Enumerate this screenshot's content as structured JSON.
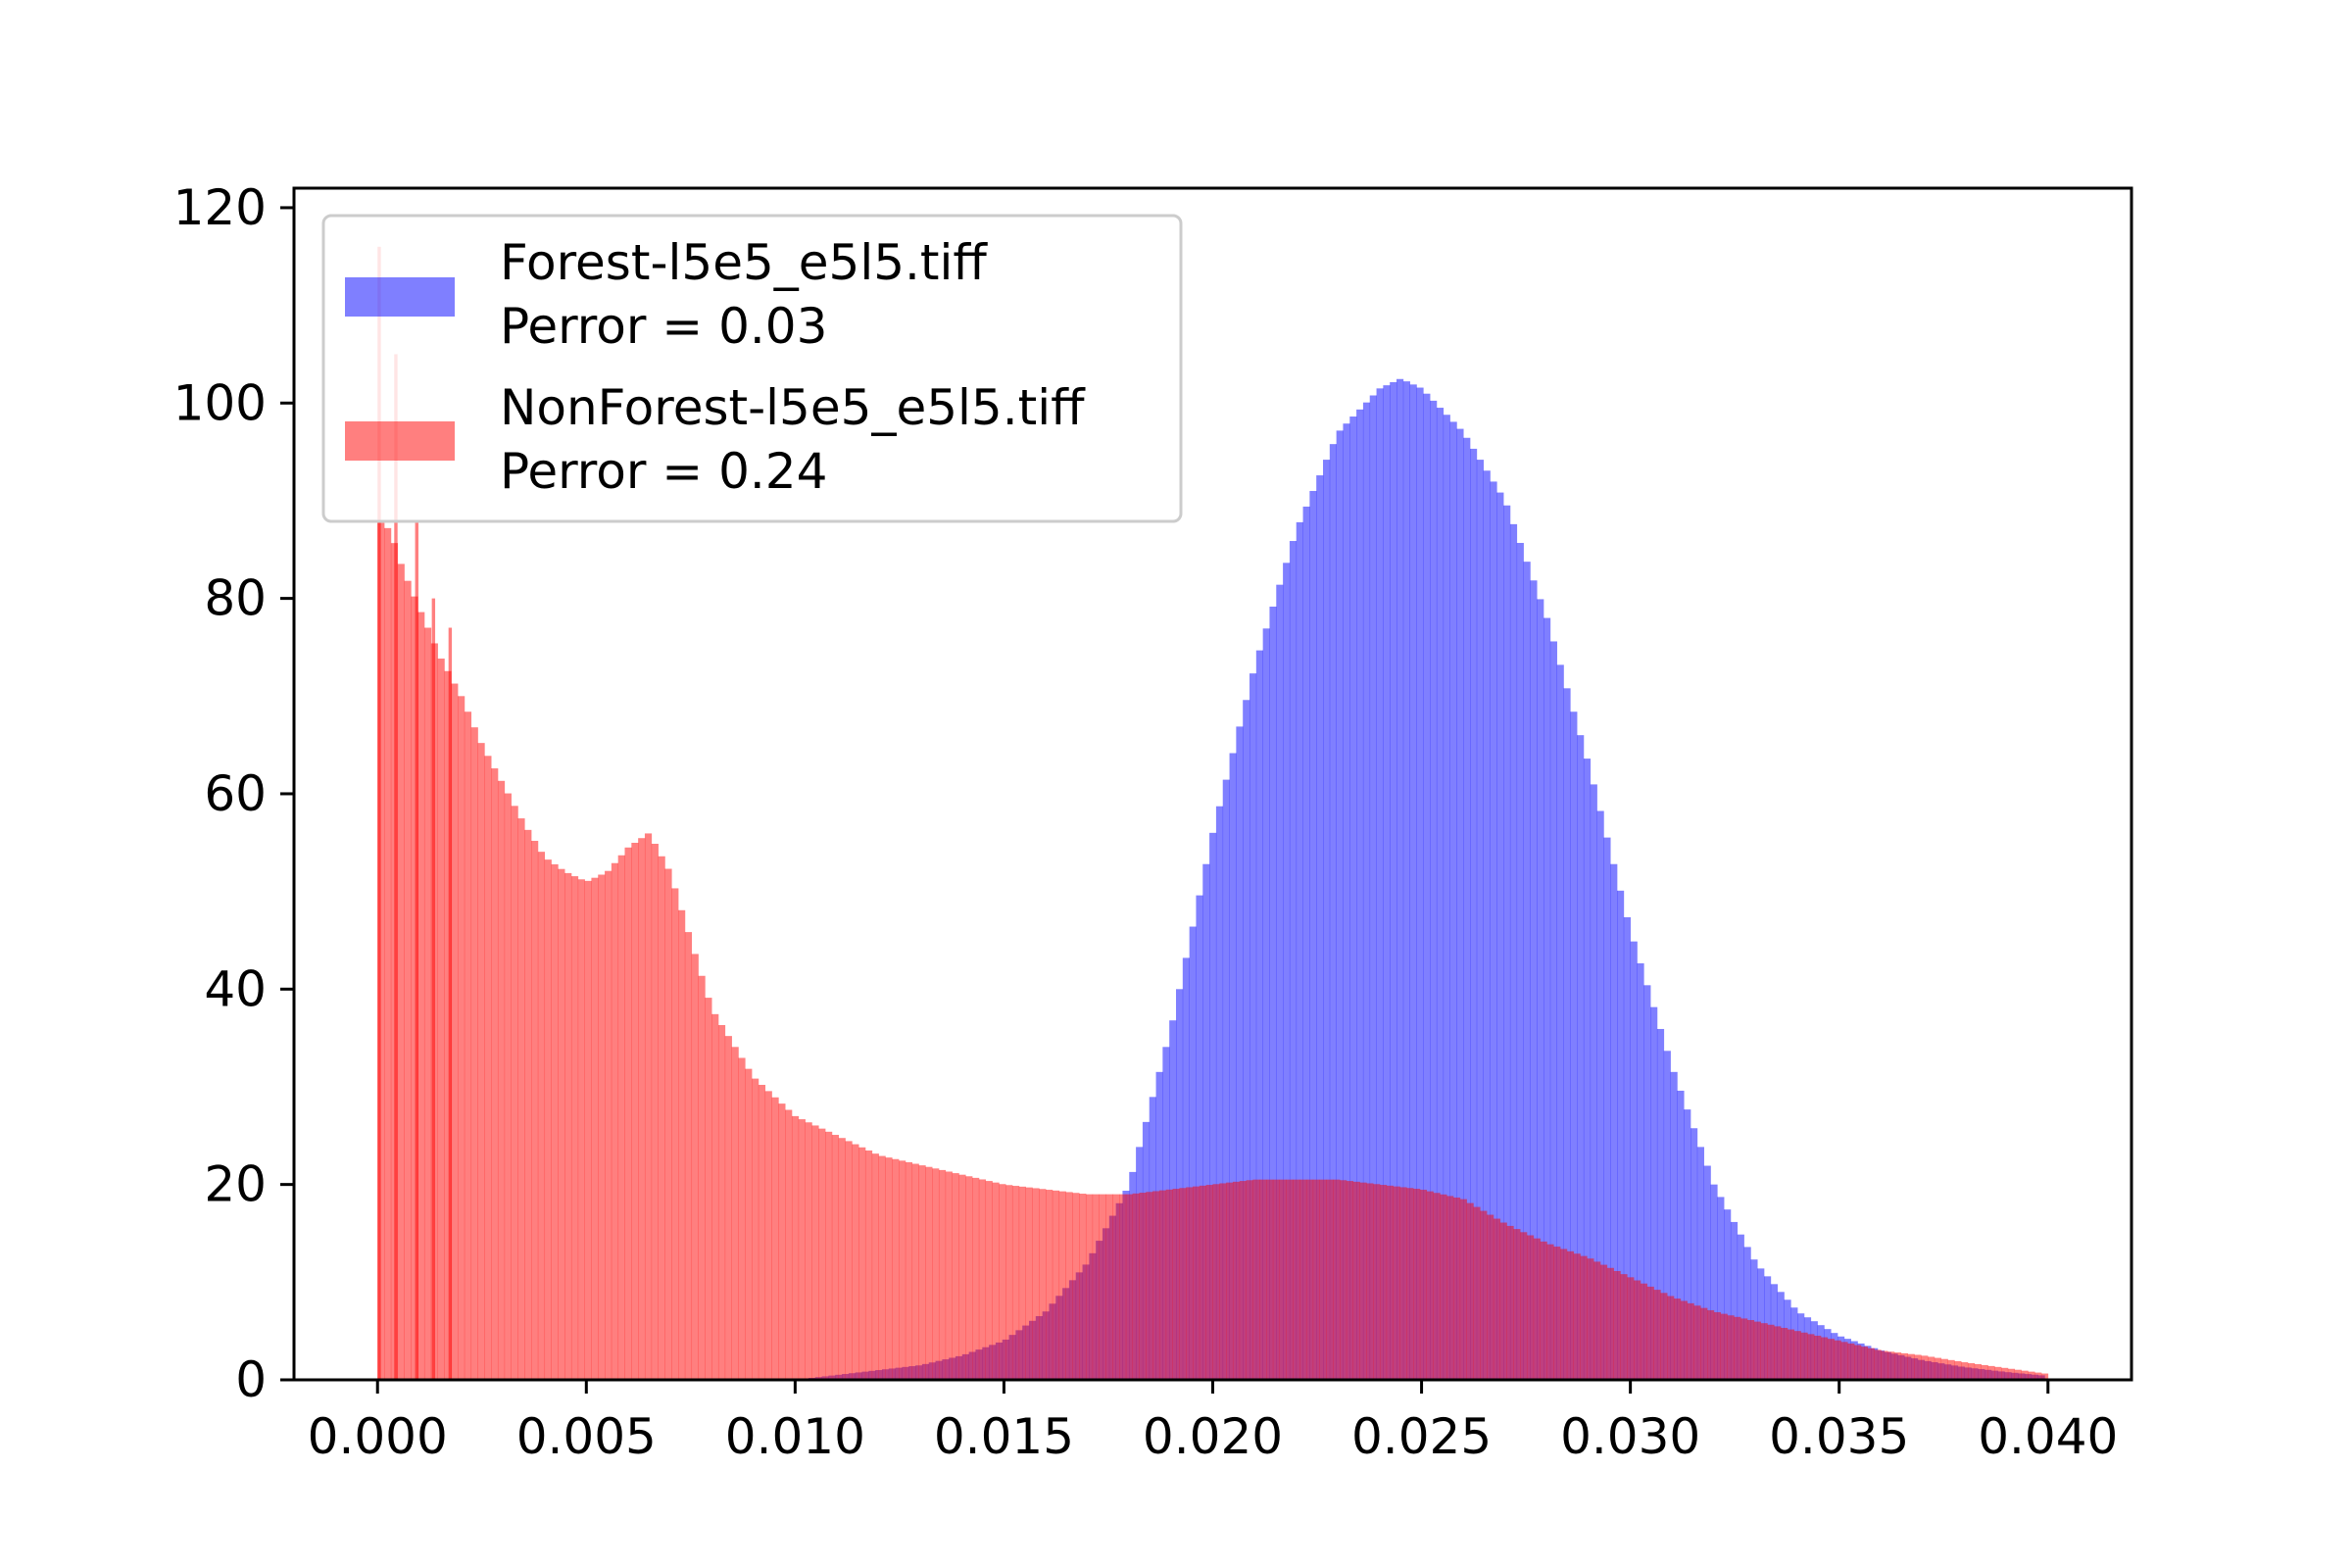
{
  "chart_data": {
    "type": "histogram",
    "title": "",
    "xlabel": "",
    "ylabel": "",
    "xlim": [
      -0.002,
      0.042
    ],
    "ylim": [
      0,
      122
    ],
    "xticks": [
      0.0,
      0.005,
      0.01,
      0.015,
      0.02,
      0.025,
      0.03,
      0.035,
      0.04
    ],
    "xtick_labels": [
      "0.000",
      "0.005",
      "0.010",
      "0.015",
      "0.020",
      "0.025",
      "0.030",
      "0.035",
      "0.040"
    ],
    "yticks": [
      0,
      20,
      40,
      60,
      80,
      100,
      120
    ],
    "ytick_labels": [
      "0",
      "20",
      "40",
      "60",
      "80",
      "100",
      "120"
    ],
    "grid": false,
    "legend_position": "top-left",
    "bin_width": 0.00016,
    "series": [
      {
        "name": "Forest-l5e5_e5l5.tiff",
        "perror_label": "Perror = 0.03",
        "color": "#0000ff",
        "alpha": 0.5,
        "x": [
          0.01,
          0.011,
          0.012,
          0.013,
          0.014,
          0.015,
          0.016,
          0.017,
          0.018,
          0.019,
          0.02,
          0.021,
          0.022,
          0.023,
          0.024,
          0.0245,
          0.025,
          0.026,
          0.027,
          0.028,
          0.029,
          0.03,
          0.031,
          0.032,
          0.033,
          0.034,
          0.035,
          0.036,
          0.037,
          0.038,
          0.039,
          0.04
        ],
        "y": [
          0,
          0.5,
          1,
          1.5,
          2.5,
          4,
          7,
          12,
          20,
          36,
          56,
          73,
          87,
          97,
          101.5,
          102.5,
          101.5,
          97,
          90,
          78,
          63,
          46,
          32,
          20,
          12,
          7,
          4.5,
          3,
          2,
          1.3,
          0.8,
          0.4
        ]
      },
      {
        "name": "NonForest-l5e5_e5l5.tiff",
        "perror_label": "Perror = 0.24",
        "color": "#ff0000",
        "alpha": 0.5,
        "x": [
          0.0,
          0.0003,
          0.0006,
          0.001,
          0.0015,
          0.002,
          0.0025,
          0.003,
          0.0035,
          0.004,
          0.0045,
          0.005,
          0.0055,
          0.006,
          0.0065,
          0.007,
          0.0075,
          0.008,
          0.009,
          0.01,
          0.011,
          0.012,
          0.013,
          0.014,
          0.015,
          0.016,
          0.017,
          0.018,
          0.019,
          0.02,
          0.021,
          0.022,
          0.023,
          0.024,
          0.025,
          0.026,
          0.027,
          0.028,
          0.029,
          0.03,
          0.031,
          0.032,
          0.033,
          0.034,
          0.035,
          0.036,
          0.037,
          0.038,
          0.039,
          0.04
        ],
        "y": [
          88,
          87,
          83,
          79,
          74,
          70,
          65,
          61,
          57,
          53.5,
          52,
          51,
          52,
          54.5,
          56,
          52,
          45,
          38,
          31,
          27,
          25,
          23,
          22,
          21,
          20,
          19.5,
          19,
          19,
          19.5,
          20,
          20.5,
          20.5,
          20.5,
          20,
          19.5,
          18.5,
          16,
          14,
          12.5,
          10.5,
          8.5,
          7,
          6,
          5,
          4,
          3,
          2.5,
          1.8,
          1.2,
          0.6
        ]
      }
    ],
    "spikes": [
      {
        "series": 1,
        "x": 0.0,
        "y": 116
      },
      {
        "series": 1,
        "x": 0.0004,
        "y": 105
      },
      {
        "series": 1,
        "x": 0.0009,
        "y": 88
      },
      {
        "series": 1,
        "x": 0.0013,
        "y": 80
      },
      {
        "series": 1,
        "x": 0.0017,
        "y": 77
      }
    ]
  }
}
